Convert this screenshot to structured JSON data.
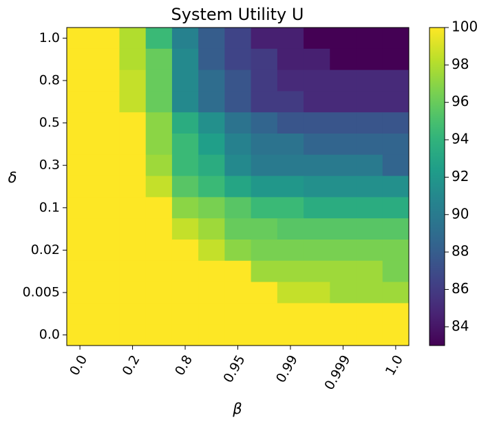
{
  "chart_data": {
    "type": "heatmap",
    "title": "System Utility U",
    "x_label": "β",
    "y_label": "δ",
    "colormap": "viridis",
    "x_categories": [
      "0.0",
      null,
      "0.2",
      null,
      "0.8",
      null,
      "0.95",
      null,
      "0.99",
      null,
      "0.999",
      null,
      "1.0"
    ],
    "y_categories": [
      "1.0",
      null,
      "0.8",
      null,
      "0.5",
      null,
      "0.3",
      null,
      "0.1",
      null,
      "0.02",
      null,
      "0.005",
      null,
      "0.0"
    ],
    "z": [
      [
        100,
        100,
        98,
        94.5,
        90.5,
        88,
        86.5,
        84.5,
        84.5,
        83,
        83,
        83,
        83
      ],
      [
        100,
        100,
        98,
        96,
        91,
        88,
        86.5,
        86,
        84.5,
        84.5,
        83,
        83,
        83
      ],
      [
        100,
        100,
        98.5,
        96,
        91,
        89,
        87.5,
        86,
        85,
        85,
        85,
        85,
        85
      ],
      [
        100,
        100,
        98.5,
        96,
        91,
        89,
        87.5,
        86,
        86,
        85,
        85,
        85,
        85
      ],
      [
        100,
        100,
        100,
        97,
        93.5,
        91.5,
        89.5,
        88.5,
        87.5,
        87.5,
        87.5,
        87.5,
        87.5
      ],
      [
        100,
        100,
        100,
        97,
        94.5,
        92.5,
        90.5,
        89.5,
        89.5,
        88.5,
        88.5,
        88.5,
        88.5
      ],
      [
        100,
        100,
        100,
        97.5,
        94.5,
        93.5,
        91,
        90,
        90,
        90,
        90,
        90,
        88.5
      ],
      [
        100,
        100,
        100,
        98.5,
        95.5,
        94.5,
        93,
        92,
        92,
        91.5,
        91.5,
        91.5,
        91.5
      ],
      [
        100,
        100,
        100,
        100,
        97,
        96.5,
        95.5,
        94.5,
        94.5,
        93.5,
        93.5,
        93.5,
        93.5
      ],
      [
        100,
        100,
        100,
        100,
        98.5,
        97.5,
        96,
        96,
        95.5,
        95.5,
        95.5,
        95.5,
        95.5
      ],
      [
        100,
        100,
        100,
        100,
        100,
        98.5,
        97,
        96.5,
        96.5,
        96.5,
        96.5,
        96.5,
        96.5
      ],
      [
        100,
        100,
        100,
        100,
        100,
        100,
        100,
        97.5,
        97.5,
        97.5,
        97.5,
        97.5,
        96.5
      ],
      [
        100,
        100,
        100,
        100,
        100,
        100,
        100,
        100,
        98.5,
        98.5,
        97.5,
        97.5,
        97.5
      ],
      [
        100,
        100,
        100,
        100,
        100,
        100,
        100,
        100,
        100,
        100,
        100,
        100,
        100
      ],
      [
        100,
        100,
        100,
        100,
        100,
        100,
        100,
        100,
        100,
        100,
        100,
        100,
        100
      ]
    ],
    "clim": [
      83,
      100
    ],
    "cticks": [
      84,
      86,
      88,
      90,
      92,
      94,
      96,
      98,
      100
    ]
  }
}
